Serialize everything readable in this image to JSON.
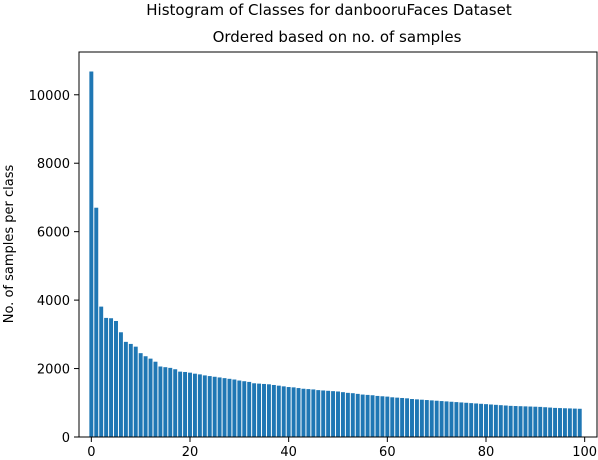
{
  "chart_data": {
    "type": "bar",
    "title": "Histogram of Classes for danbooruFaces Dataset",
    "subtitle": "Ordered based on no. of samples",
    "xlabel": "",
    "ylabel": "No. of samples per class",
    "xlim": [
      -2.5,
      102.5
    ],
    "ylim": [
      0,
      11250
    ],
    "xticks": [
      0,
      20,
      40,
      60,
      80,
      100
    ],
    "yticks": [
      0,
      2000,
      4000,
      6000,
      8000,
      10000
    ],
    "grid": false,
    "bar_color": "#1f77b4",
    "x": [
      0,
      1,
      2,
      3,
      4,
      5,
      6,
      7,
      8,
      9,
      10,
      11,
      12,
      13,
      14,
      15,
      16,
      17,
      18,
      19,
      20,
      21,
      22,
      23,
      24,
      25,
      26,
      27,
      28,
      29,
      30,
      31,
      32,
      33,
      34,
      35,
      36,
      37,
      38,
      39,
      40,
      41,
      42,
      43,
      44,
      45,
      46,
      47,
      48,
      49,
      50,
      51,
      52,
      53,
      54,
      55,
      56,
      57,
      58,
      59,
      60,
      61,
      62,
      63,
      64,
      65,
      66,
      67,
      68,
      69,
      70,
      71,
      72,
      73,
      74,
      75,
      76,
      77,
      78,
      79,
      80,
      81,
      82,
      83,
      84,
      85,
      86,
      87,
      88,
      89,
      90,
      91,
      92,
      93,
      94,
      95,
      96,
      97,
      98,
      99
    ],
    "values": [
      10680,
      6700,
      3810,
      3480,
      3470,
      3390,
      3060,
      2780,
      2720,
      2640,
      2450,
      2360,
      2290,
      2200,
      2060,
      2040,
      2020,
      1980,
      1910,
      1900,
      1880,
      1850,
      1830,
      1800,
      1780,
      1760,
      1740,
      1720,
      1700,
      1680,
      1650,
      1630,
      1610,
      1570,
      1560,
      1550,
      1540,
      1520,
      1500,
      1480,
      1460,
      1450,
      1430,
      1410,
      1400,
      1390,
      1370,
      1360,
      1350,
      1340,
      1330,
      1310,
      1290,
      1280,
      1260,
      1240,
      1230,
      1220,
      1200,
      1190,
      1180,
      1160,
      1150,
      1140,
      1130,
      1110,
      1100,
      1090,
      1080,
      1070,
      1060,
      1050,
      1040,
      1030,
      1020,
      1010,
      1000,
      990,
      980,
      970,
      960,
      950,
      940,
      930,
      920,
      910,
      905,
      900,
      895,
      890,
      885,
      880,
      870,
      860,
      850,
      845,
      840,
      835,
      830,
      825
    ]
  }
}
